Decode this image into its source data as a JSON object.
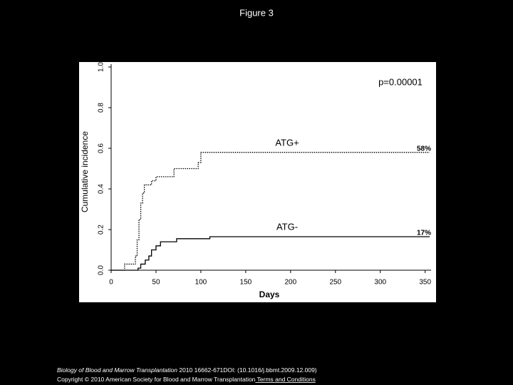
{
  "header": {
    "title": "Figure 3"
  },
  "chart_data": {
    "type": "line",
    "step": true,
    "ylabel": "Cumulative incidence",
    "xlabel": "Days",
    "xlim": [
      0,
      355
    ],
    "ylim": [
      0,
      1
    ],
    "xticks": [
      0,
      50,
      100,
      150,
      200,
      250,
      300,
      350
    ],
    "yticks": [
      {
        "value": 0,
        "label": "0.0"
      },
      0.2,
      0.4,
      0.6,
      0.8,
      {
        "value": 1,
        "label": "1.0"
      }
    ],
    "annotations": [
      "p=0.00001",
      "58%",
      "17%"
    ],
    "series": [
      {
        "name": "ATG+",
        "color": "#000000",
        "style": "dotted",
        "x": [
          0,
          15,
          25,
          27,
          29,
          31,
          33,
          35,
          37,
          45,
          50,
          70,
          97,
          100,
          355
        ],
        "values": [
          0,
          0.03,
          0.03,
          0.07,
          0.15,
          0.25,
          0.33,
          0.38,
          0.42,
          0.44,
          0.46,
          0.5,
          0.53,
          0.58,
          0.58
        ]
      },
      {
        "name": "ATG-",
        "color": "#000000",
        "style": "solid",
        "x": [
          0,
          30,
          33,
          38,
          42,
          45,
          50,
          55,
          73,
          110,
          355
        ],
        "values": [
          0,
          0.01,
          0.03,
          0.05,
          0.07,
          0.1,
          0.12,
          0.14,
          0.155,
          0.165,
          0.165
        ]
      }
    ]
  },
  "footer": {
    "journal": "Biology of Blood and Marrow Transplantation",
    "citation": " 2010 16662-671DOI: (10.1016/j.bbmt.2009.12.009) ",
    "copyright": "Copyright © 2010 American Society for Blood and Marrow Transplantation",
    "link": " Terms and Conditions"
  }
}
